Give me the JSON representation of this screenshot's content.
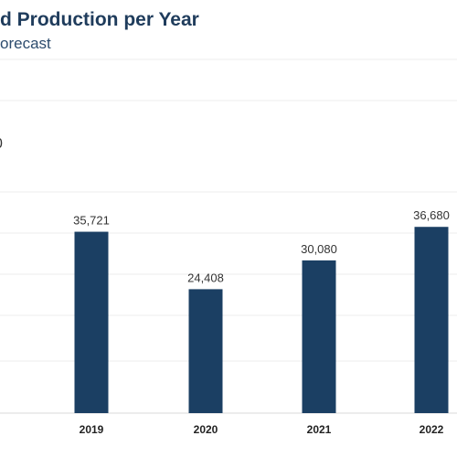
{
  "chart_data": {
    "type": "bar",
    "title": "d Production per Year",
    "subtitle": "orecast",
    "categories": [
      "2019",
      "2020",
      "2021",
      "2022"
    ],
    "values": [
      35721,
      24408,
      30080,
      36680
    ],
    "value_labels": [
      "35,721",
      "24,408",
      "30,080",
      "36,680"
    ],
    "ylim": [
      0,
      40000
    ],
    "grid": true,
    "bar_color": "#1b3f63",
    "xlabel": "",
    "ylabel": ""
  }
}
